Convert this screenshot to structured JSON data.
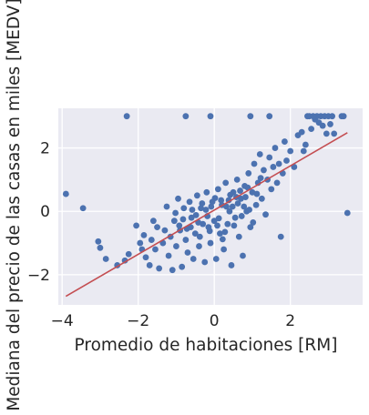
{
  "chart_data": {
    "type": "scatter",
    "title": "",
    "xlabel": "Promedio de habitaciones [RM]",
    "ylabel": "Mediana del precio de las casas en miles [MEDV]",
    "xlim": [
      -4.1,
      3.9
    ],
    "ylim": [
      -2.95,
      3.25
    ],
    "xticks": [
      -4,
      -2,
      0,
      2
    ],
    "xtick_labels": [
      "−4",
      "−2",
      "0",
      "2"
    ],
    "yticks": [
      -2,
      0,
      2
    ],
    "ytick_labels": [
      "−2",
      "0",
      "2"
    ],
    "grid": true,
    "background": "#eaeaf2",
    "grid_color": "#ffffff",
    "point_color": "#4c72b0",
    "line_color": "#c44e52",
    "series": [
      {
        "kind": "points",
        "points": [
          [
            -3.9,
            0.55
          ],
          [
            -3.45,
            0.1
          ],
          [
            -3.05,
            -0.95
          ],
          [
            -3.0,
            -1.15
          ],
          [
            -2.85,
            -1.5
          ],
          [
            -2.55,
            -1.7
          ],
          [
            -2.35,
            -1.55
          ],
          [
            -2.25,
            -1.35
          ],
          [
            -2.05,
            -0.45
          ],
          [
            -1.95,
            -1.0
          ],
          [
            -1.9,
            -1.2
          ],
          [
            -1.85,
            -0.75
          ],
          [
            -1.8,
            -1.45
          ],
          [
            -1.7,
            -1.7
          ],
          [
            -1.65,
            -0.9
          ],
          [
            -1.6,
            -0.3
          ],
          [
            -1.55,
            -1.2
          ],
          [
            -1.5,
            -0.5
          ],
          [
            -1.45,
            -1.8
          ],
          [
            -1.35,
            -1.0
          ],
          [
            -1.3,
            -0.6
          ],
          [
            -1.25,
            0.15
          ],
          [
            -1.2,
            -1.4
          ],
          [
            -1.15,
            -0.8
          ],
          [
            -1.1,
            -1.85
          ],
          [
            -1.05,
            -0.3
          ],
          [
            -1.0,
            -1.1
          ],
          [
            -0.95,
            0.4
          ],
          [
            -0.9,
            -0.6
          ],
          [
            -0.85,
            -1.75
          ],
          [
            -0.8,
            0.1
          ],
          [
            -0.75,
            -0.9
          ],
          [
            -0.7,
            -1.3
          ],
          [
            -0.65,
            0.3
          ],
          [
            -0.6,
            -0.2
          ],
          [
            -0.55,
            -1.5
          ],
          [
            -0.5,
            -0.7
          ],
          [
            -0.45,
            0.5
          ],
          [
            -0.4,
            -1.1
          ],
          [
            -0.35,
            0.1
          ],
          [
            -0.3,
            -0.4
          ],
          [
            -0.25,
            -1.6
          ],
          [
            -0.2,
            0.6
          ],
          [
            -0.15,
            -0.5
          ],
          [
            -0.1,
            -1.0
          ],
          [
            -0.05,
            0.3
          ],
          [
            0.0,
            -0.3
          ],
          [
            0.05,
            -1.5
          ],
          [
            0.1,
            0.7
          ],
          [
            0.15,
            -0.7
          ],
          [
            0.2,
            0.2
          ],
          [
            0.25,
            -1.2
          ],
          [
            0.3,
            0.9
          ],
          [
            0.35,
            -0.4
          ],
          [
            0.4,
            0.0
          ],
          [
            0.45,
            -1.7
          ],
          [
            0.5,
            0.6
          ],
          [
            0.55,
            -0.2
          ],
          [
            0.6,
            1.0
          ],
          [
            0.65,
            -0.8
          ],
          [
            0.7,
            0.4
          ],
          [
            0.75,
            -1.4
          ],
          [
            0.8,
            0.8
          ],
          [
            0.85,
            0.0
          ],
          [
            0.9,
            1.2
          ],
          [
            0.95,
            -0.5
          ],
          [
            1.0,
            0.6
          ],
          [
            1.05,
            1.5
          ],
          [
            1.1,
            0.2
          ],
          [
            1.15,
            0.9
          ],
          [
            1.2,
            1.8
          ],
          [
            1.25,
            0.4
          ],
          [
            1.3,
            1.3
          ],
          [
            1.35,
            -0.1
          ],
          [
            1.4,
            1.0
          ],
          [
            1.45,
            1.7
          ],
          [
            1.5,
            0.7
          ],
          [
            1.55,
            1.4
          ],
          [
            1.6,
            2.0
          ],
          [
            1.65,
            0.9
          ],
          [
            1.7,
            1.5
          ],
          [
            1.75,
            -0.8
          ],
          [
            1.8,
            1.2
          ],
          [
            1.85,
            2.2
          ],
          [
            1.9,
            1.6
          ],
          [
            2.0,
            1.9
          ],
          [
            2.1,
            1.4
          ],
          [
            2.2,
            2.4
          ],
          [
            2.3,
            2.5
          ],
          [
            2.35,
            1.9
          ],
          [
            2.4,
            2.1
          ],
          [
            2.5,
            3.0
          ],
          [
            2.55,
            2.6
          ],
          [
            2.6,
            3.0
          ],
          [
            2.65,
            2.9
          ],
          [
            2.7,
            3.0
          ],
          [
            2.75,
            2.8
          ],
          [
            2.8,
            3.0
          ],
          [
            2.85,
            2.7
          ],
          [
            2.9,
            3.0
          ],
          [
            2.95,
            2.45
          ],
          [
            3.0,
            3.0
          ],
          [
            3.05,
            2.75
          ],
          [
            3.1,
            3.0
          ],
          [
            3.15,
            2.45
          ],
          [
            3.35,
            3.0
          ],
          [
            3.4,
            3.0
          ],
          [
            3.5,
            -0.05
          ],
          [
            -2.3,
            3.0
          ],
          [
            -0.75,
            3.0
          ],
          [
            -0.1,
            3.0
          ],
          [
            0.95,
            3.0
          ],
          [
            1.45,
            3.0
          ],
          [
            2.45,
            3.0
          ],
          [
            -0.62,
            -0.5
          ],
          [
            -0.48,
            -0.12
          ],
          [
            -0.38,
            -0.8
          ],
          [
            -0.22,
            0.05
          ],
          [
            -0.12,
            -0.62
          ],
          [
            0.02,
            0.42
          ],
          [
            0.12,
            -0.22
          ],
          [
            0.22,
            -0.88
          ],
          [
            0.32,
            0.15
          ],
          [
            0.42,
            0.52
          ],
          [
            0.52,
            -0.45
          ],
          [
            0.62,
            0.25
          ],
          [
            0.72,
            -0.15
          ],
          [
            0.82,
            0.45
          ],
          [
            0.92,
            0.05
          ],
          [
            1.02,
            -0.35
          ],
          [
            1.12,
            0.55
          ],
          [
            1.22,
            1.05
          ],
          [
            -1.02,
            -0.05
          ],
          [
            -0.92,
            -0.45
          ],
          [
            -0.82,
            -0.25
          ],
          [
            -0.72,
            -0.55
          ],
          [
            -0.58,
            0.05
          ],
          [
            -0.42,
            -0.35
          ],
          [
            -0.32,
            0.25
          ],
          [
            -0.18,
            -0.15
          ],
          [
            -0.08,
            0.15
          ],
          [
            0.08,
            -0.45
          ],
          [
            0.18,
            0.35
          ],
          [
            0.28,
            -0.65
          ],
          [
            0.38,
            0.35
          ],
          [
            0.48,
            0.15
          ],
          [
            0.58,
            0.45
          ],
          [
            0.68,
            0.65
          ],
          [
            0.78,
            0.15
          ],
          [
            0.88,
            0.75
          ]
        ]
      },
      {
        "kind": "line",
        "points": [
          [
            -3.9,
            -2.68
          ],
          [
            3.5,
            2.48
          ]
        ]
      }
    ]
  }
}
